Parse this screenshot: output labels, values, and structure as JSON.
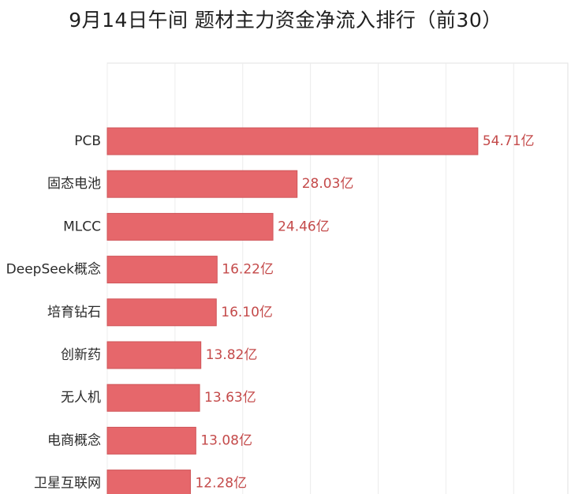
{
  "title": "9月14日午间 题材主力资金净流入排行（前30）",
  "chart_data": {
    "type": "bar",
    "orientation": "horizontal",
    "title": "9月14日午间 题材主力资金净流入排行（前30）",
    "categories": [
      "PCB",
      "固态电池",
      "MLCC",
      "DeepSeek概念",
      "培育钻石",
      "创新药",
      "无人机",
      "电商概念",
      "卫星互联网"
    ],
    "values": [
      54.71,
      28.03,
      24.46,
      16.22,
      16.1,
      13.82,
      13.63,
      13.08,
      12.28
    ],
    "value_labels": [
      "54.71亿",
      "28.03亿",
      "24.46亿",
      "16.22亿",
      "16.10亿",
      "13.82亿",
      "13.63亿",
      "13.08亿",
      "12.28亿"
    ],
    "unit": "亿",
    "xlim": [
      0,
      68
    ],
    "grid": true,
    "bar_color": "#e6676b",
    "label_color": "#c44a4a"
  }
}
